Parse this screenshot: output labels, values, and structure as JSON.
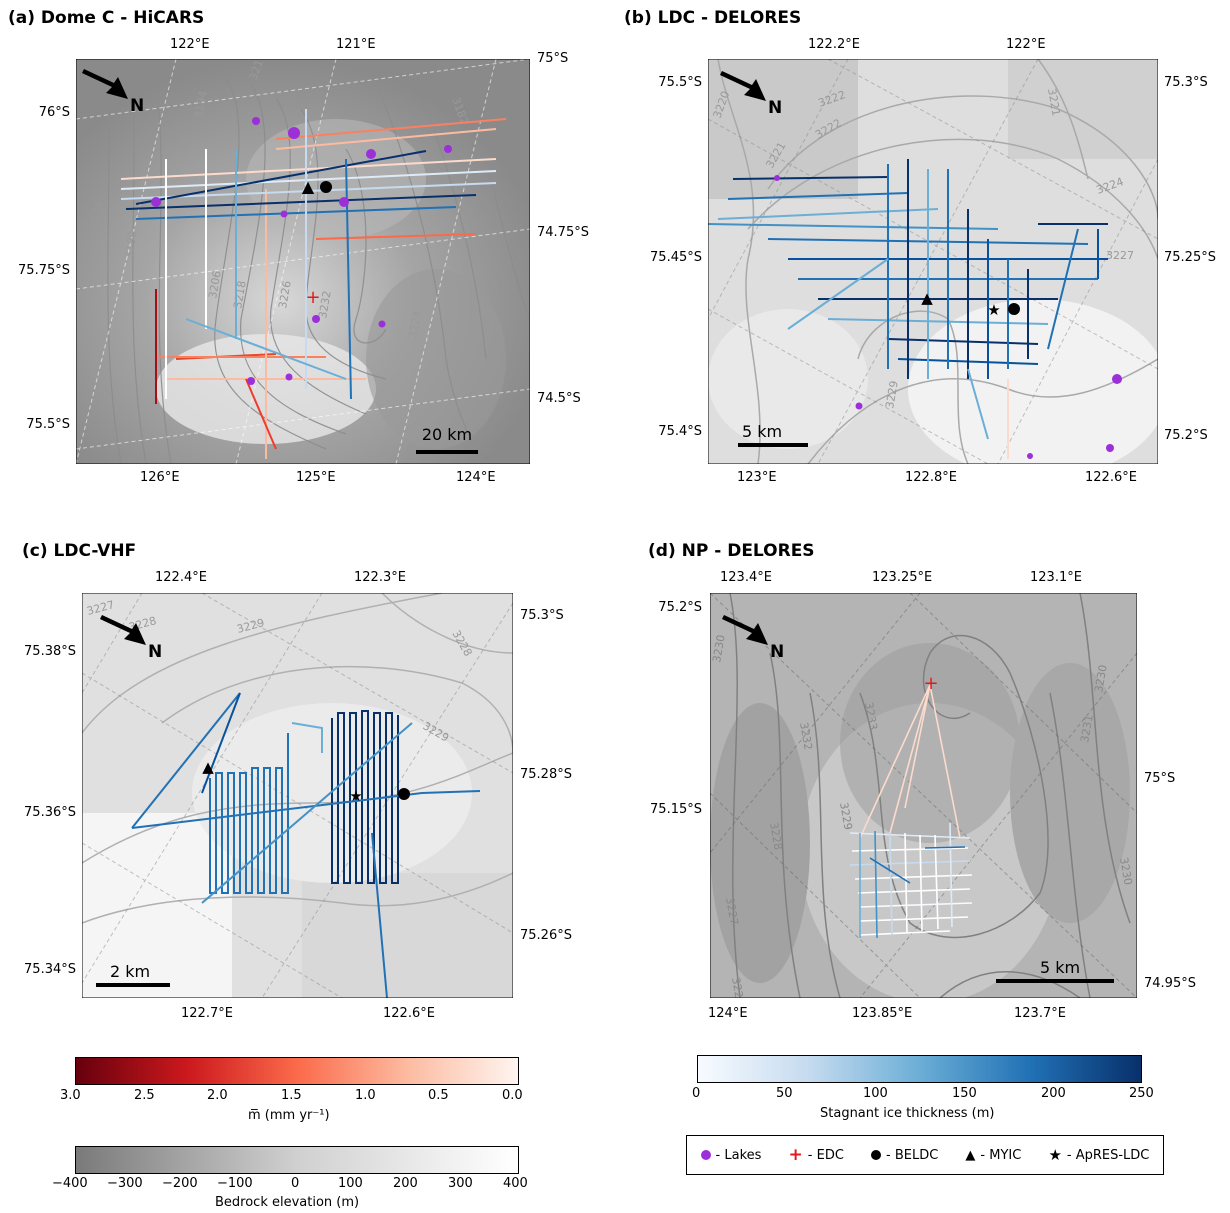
{
  "panels": {
    "a": {
      "title": "(a) Dome C - HiCARS",
      "top_ticks": [
        "122°E",
        "121°E"
      ],
      "bottom_ticks": [
        "126°E",
        "125°E",
        "124°E"
      ],
      "left_ticks": [
        "76°S",
        "75.75°S",
        "75.5°S"
      ],
      "right_ticks": [
        "75°S",
        "74.75°S",
        "74.5°S"
      ],
      "north": "N",
      "scale": "20 km",
      "contours": [
        "3210",
        "3194",
        "3198",
        "3182",
        "3190",
        "3174",
        "3206",
        "3218",
        "3226",
        "3232",
        "3224",
        "3174",
        "3186"
      ]
    },
    "b": {
      "title": "(b) LDC - DELORES",
      "top_ticks": [
        "122.2°E",
        "122°E"
      ],
      "bottom_ticks": [
        "123°E",
        "122.8°E",
        "122.6°E"
      ],
      "left_ticks": [
        "75.5°S",
        "75.45°S",
        "75.4°S"
      ],
      "right_ticks": [
        "75.3°S",
        "75.25°S",
        "75.2°S"
      ],
      "north": "N",
      "scale": "5 km",
      "contours": [
        "3220",
        "3222",
        "3221",
        "3222",
        "3224",
        "3227",
        "3229",
        "3221",
        "3220"
      ]
    },
    "c": {
      "title": "(c) LDC-VHF",
      "top_ticks": [
        "122.4°E",
        "122.3°E"
      ],
      "bottom_ticks": [
        "122.7°E",
        "122.6°E"
      ],
      "left_ticks": [
        "75.38°S",
        "75.36°S",
        "75.34°S"
      ],
      "right_ticks": [
        "75.3°S",
        "75.28°S",
        "75.26°S"
      ],
      "north": "N",
      "scale": "2 km",
      "contours": [
        "3227",
        "3228",
        "3229",
        "3228",
        "3229"
      ]
    },
    "d": {
      "title": "(d) NP - DELORES",
      "top_ticks": [
        "123.4°E",
        "123.25°E",
        "123.1°E"
      ],
      "bottom_ticks": [
        "124°E",
        "123.85°E",
        "123.7°E"
      ],
      "left_ticks": [
        "75.2°S",
        "75.15°S"
      ],
      "right_ticks": [
        "75°S",
        "74.95°S"
      ],
      "north": "N",
      "scale": "5 km",
      "contours": [
        "3230",
        "3233",
        "3232",
        "3229",
        "3228",
        "3227",
        "3226",
        "3231",
        "3230",
        "3230"
      ]
    }
  },
  "colorbars": {
    "melt": {
      "ticks": [
        "3.0",
        "2.5",
        "2.0",
        "1.5",
        "1.0",
        "0.5",
        "0.0"
      ],
      "label": "m̅ (mm yr⁻¹)",
      "colors": [
        "#67000d",
        "#cb181d",
        "#fb6a4a",
        "#fcbba1",
        "#fff5f0"
      ]
    },
    "bedrock": {
      "ticks": [
        "−400",
        "−300",
        "−200",
        "−100",
        "0",
        "100",
        "200",
        "300",
        "400"
      ],
      "label": "Bedrock elevation (m)",
      "colors": [
        "#7a7a7a",
        "#d0d0d0",
        "#ffffff"
      ]
    },
    "stagnant": {
      "ticks": [
        "0",
        "50",
        "100",
        "150",
        "200",
        "250"
      ],
      "label": "Stagnant ice thickness (m)",
      "colors": [
        "#f7fbff",
        "#c6dbef",
        "#6baed6",
        "#2171b5",
        "#08306b"
      ]
    }
  },
  "legend": {
    "items": [
      {
        "symbol": "circle-purple",
        "label": "- Lakes",
        "color": "#9b30d9"
      },
      {
        "symbol": "plus-red",
        "label": "- EDC",
        "color": "#e31a1c"
      },
      {
        "symbol": "circle-black",
        "label": "- BELDC",
        "color": "#000000"
      },
      {
        "symbol": "triangle-black",
        "label": "- MYIC",
        "color": "#000000"
      },
      {
        "symbol": "star-black",
        "label": "- ApRES-LDC",
        "color": "#000000"
      }
    ]
  }
}
